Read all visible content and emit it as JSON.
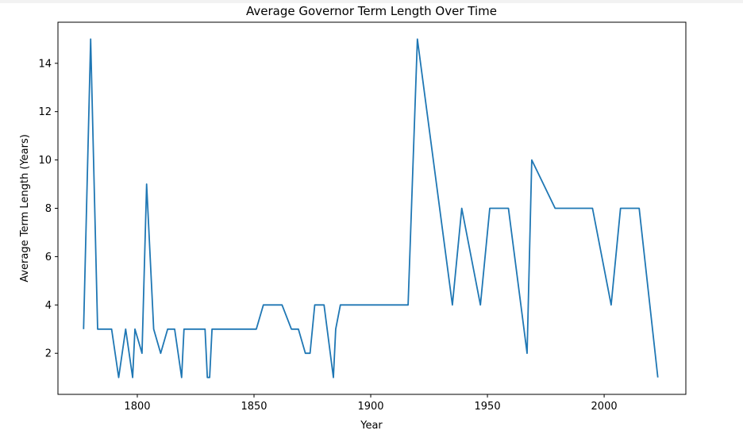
{
  "chart_data": {
    "type": "line",
    "title": "Average Governor Term Length Over Time",
    "xlabel": "Year",
    "ylabel": "Average Term Length (Years)",
    "xlim": [
      1766,
      2035
    ],
    "ylim": [
      0.3,
      15.7
    ],
    "xticks": [
      1800,
      1850,
      1900,
      1950,
      2000
    ],
    "yticks": [
      2,
      4,
      6,
      8,
      10,
      12,
      14
    ],
    "grid": false,
    "legend": false,
    "line_color": "#1f77b4",
    "series": [
      {
        "x": [
          1777,
          1780,
          1783,
          1786,
          1789,
          1792,
          1795,
          1798,
          1799,
          1802,
          1804,
          1807,
          1810,
          1813,
          1816,
          1819,
          1820,
          1825,
          1829,
          1830,
          1831,
          1832,
          1836,
          1845,
          1851,
          1854,
          1860,
          1862,
          1866,
          1869,
          1872,
          1874,
          1876,
          1880,
          1884,
          1885,
          1887,
          1890,
          1895,
          1900,
          1905,
          1910,
          1916,
          1920,
          1935,
          1939,
          1947,
          1951,
          1955,
          1959,
          1967,
          1969,
          1979,
          1985,
          1990,
          1995,
          2003,
          2007,
          2011,
          2015,
          2023
        ],
        "y": [
          3,
          15,
          3,
          3,
          3,
          1,
          3,
          1,
          3,
          2,
          9,
          3,
          2,
          3,
          3,
          1,
          3,
          3,
          3,
          1,
          1,
          3,
          3,
          3,
          3,
          4,
          4,
          4,
          3,
          3,
          2,
          2,
          4,
          4,
          1,
          3,
          4,
          4,
          4,
          4,
          4,
          4,
          4,
          15,
          4,
          8,
          4,
          8,
          8,
          8,
          2,
          10,
          8,
          8,
          8,
          8,
          4,
          8,
          8,
          8,
          1
        ]
      }
    ]
  }
}
